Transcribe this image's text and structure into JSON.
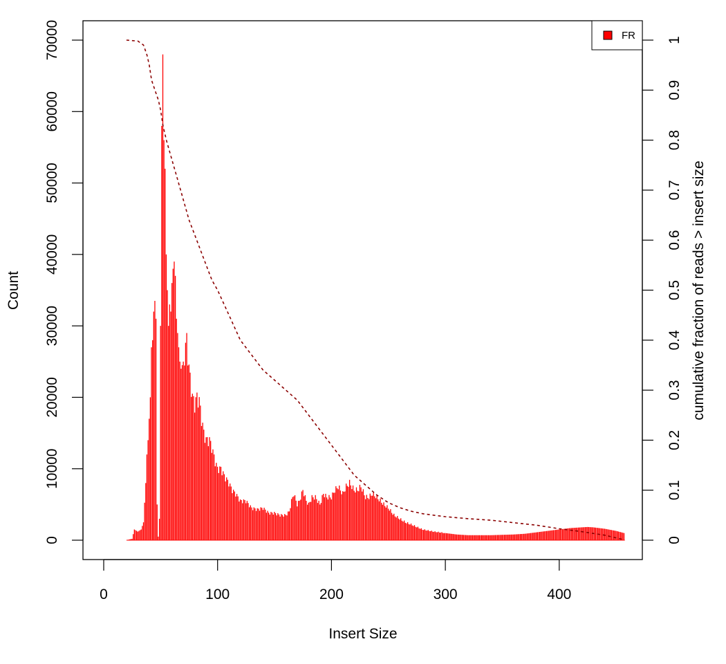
{
  "chart_data": {
    "type": "bar",
    "title": "",
    "xlabel": "Insert Size",
    "ylabel": "Count",
    "y2label": "cumulative fraction of reads > insert size",
    "xlim": [
      0,
      460
    ],
    "ylim": [
      0,
      70000
    ],
    "y2lim": [
      0,
      1
    ],
    "xticks": [
      "0",
      "100",
      "200",
      "300",
      "400"
    ],
    "yticks": [
      "0",
      "10000",
      "20000",
      "30000",
      "40000",
      "50000",
      "60000",
      "70000"
    ],
    "y2ticks": [
      "0",
      "0.1",
      "0.2",
      "0.3",
      "0.4",
      "0.5",
      "0.6",
      "0.7",
      "0.8",
      "0.9",
      "1"
    ],
    "grid": false,
    "legend": {
      "placement": "top-right",
      "entries": [
        {
          "label": "FR",
          "color": "#ff0000"
        }
      ]
    },
    "colors": {
      "bars": "#ff0000",
      "cumulative_line": "#8b0000"
    },
    "series": [
      {
        "name": "FR",
        "kind": "histogram",
        "points": [
          [
            20,
            0
          ],
          [
            25,
            200
          ],
          [
            27,
            1500
          ],
          [
            30,
            1200
          ],
          [
            33,
            1500
          ],
          [
            35,
            2500
          ],
          [
            37,
            8000
          ],
          [
            38,
            12000
          ],
          [
            39,
            14000
          ],
          [
            40,
            17000
          ],
          [
            41,
            20000
          ],
          [
            42,
            27000
          ],
          [
            43,
            28000
          ],
          [
            44,
            32000
          ],
          [
            45,
            33500
          ],
          [
            46,
            31000
          ],
          [
            47,
            5000
          ],
          [
            48,
            500
          ],
          [
            49,
            3000
          ],
          [
            50,
            30000
          ],
          [
            51,
            58000
          ],
          [
            52,
            68000
          ],
          [
            53,
            56000
          ],
          [
            54,
            52000
          ],
          [
            55,
            40000
          ],
          [
            56,
            35000
          ],
          [
            57,
            30000
          ],
          [
            58,
            33000
          ],
          [
            59,
            32000
          ],
          [
            60,
            36000
          ],
          [
            61,
            38000
          ],
          [
            62,
            39000
          ],
          [
            63,
            37000
          ],
          [
            64,
            31000
          ],
          [
            65,
            29000
          ],
          [
            66,
            27000
          ],
          [
            67,
            25000
          ],
          [
            68,
            24000
          ],
          [
            70,
            25000
          ],
          [
            72,
            27000
          ],
          [
            73,
            28000
          ],
          [
            75,
            24000
          ],
          [
            78,
            20000
          ],
          [
            80,
            19000
          ],
          [
            82,
            20000
          ],
          [
            84,
            19500
          ],
          [
            86,
            17000
          ],
          [
            88,
            15000
          ],
          [
            90,
            14000
          ],
          [
            93,
            14000
          ],
          [
            95,
            13000
          ],
          [
            98,
            11000
          ],
          [
            100,
            10000
          ],
          [
            103,
            10000
          ],
          [
            106,
            9000
          ],
          [
            110,
            8000
          ],
          [
            113,
            7000
          ],
          [
            116,
            6500
          ],
          [
            120,
            5500
          ],
          [
            125,
            5500
          ],
          [
            130,
            4500
          ],
          [
            135,
            4300
          ],
          [
            140,
            4500
          ],
          [
            145,
            3800
          ],
          [
            150,
            3800
          ],
          [
            155,
            3500
          ],
          [
            160,
            3500
          ],
          [
            163,
            4000
          ],
          [
            165,
            5500
          ],
          [
            167,
            6500
          ],
          [
            170,
            5000
          ],
          [
            172,
            5500
          ],
          [
            175,
            7000
          ],
          [
            178,
            5500
          ],
          [
            180,
            5000
          ],
          [
            183,
            6000
          ],
          [
            186,
            6000
          ],
          [
            190,
            5000
          ],
          [
            193,
            6500
          ],
          [
            196,
            6000
          ],
          [
            200,
            6000
          ],
          [
            203,
            7000
          ],
          [
            206,
            7500
          ],
          [
            210,
            6500
          ],
          [
            213,
            7500
          ],
          [
            216,
            8000
          ],
          [
            220,
            7000
          ],
          [
            223,
            7000
          ],
          [
            226,
            7500
          ],
          [
            230,
            6000
          ],
          [
            233,
            6000
          ],
          [
            236,
            6500
          ],
          [
            240,
            6000
          ],
          [
            243,
            5500
          ],
          [
            246,
            5000
          ],
          [
            250,
            4500
          ],
          [
            255,
            3500
          ],
          [
            260,
            3000
          ],
          [
            265,
            2500
          ],
          [
            270,
            2200
          ],
          [
            280,
            1500
          ],
          [
            290,
            1200
          ],
          [
            300,
            1000
          ],
          [
            310,
            800
          ],
          [
            320,
            700
          ],
          [
            330,
            700
          ],
          [
            340,
            700
          ],
          [
            350,
            750
          ],
          [
            360,
            800
          ],
          [
            370,
            900
          ],
          [
            380,
            1100
          ],
          [
            390,
            1300
          ],
          [
            400,
            1500
          ],
          [
            410,
            1700
          ],
          [
            420,
            1800
          ],
          [
            425,
            1850
          ],
          [
            430,
            1800
          ],
          [
            440,
            1600
          ],
          [
            450,
            1300
          ],
          [
            457,
            1000
          ]
        ]
      },
      {
        "name": "cumulative",
        "kind": "line",
        "axis": "right",
        "points": [
          [
            20,
            1.0
          ],
          [
            30,
            0.998
          ],
          [
            35,
            0.99
          ],
          [
            38,
            0.97
          ],
          [
            40,
            0.95
          ],
          [
            42,
            0.92
          ],
          [
            45,
            0.9
          ],
          [
            48,
            0.88
          ],
          [
            50,
            0.86
          ],
          [
            52,
            0.83
          ],
          [
            55,
            0.8
          ],
          [
            60,
            0.76
          ],
          [
            65,
            0.72
          ],
          [
            70,
            0.68
          ],
          [
            75,
            0.64
          ],
          [
            80,
            0.61
          ],
          [
            85,
            0.58
          ],
          [
            90,
            0.55
          ],
          [
            95,
            0.52
          ],
          [
            100,
            0.5
          ],
          [
            110,
            0.45
          ],
          [
            120,
            0.4
          ],
          [
            130,
            0.37
          ],
          [
            140,
            0.34
          ],
          [
            150,
            0.32
          ],
          [
            160,
            0.3
          ],
          [
            170,
            0.28
          ],
          [
            180,
            0.25
          ],
          [
            190,
            0.22
          ],
          [
            200,
            0.19
          ],
          [
            210,
            0.16
          ],
          [
            220,
            0.13
          ],
          [
            230,
            0.11
          ],
          [
            240,
            0.09
          ],
          [
            250,
            0.075
          ],
          [
            260,
            0.065
          ],
          [
            270,
            0.058
          ],
          [
            280,
            0.053
          ],
          [
            290,
            0.05
          ],
          [
            300,
            0.047
          ],
          [
            320,
            0.043
          ],
          [
            340,
            0.04
          ],
          [
            360,
            0.035
          ],
          [
            380,
            0.03
          ],
          [
            400,
            0.023
          ],
          [
            420,
            0.017
          ],
          [
            440,
            0.01
          ],
          [
            455,
            0.002
          ]
        ]
      }
    ]
  }
}
